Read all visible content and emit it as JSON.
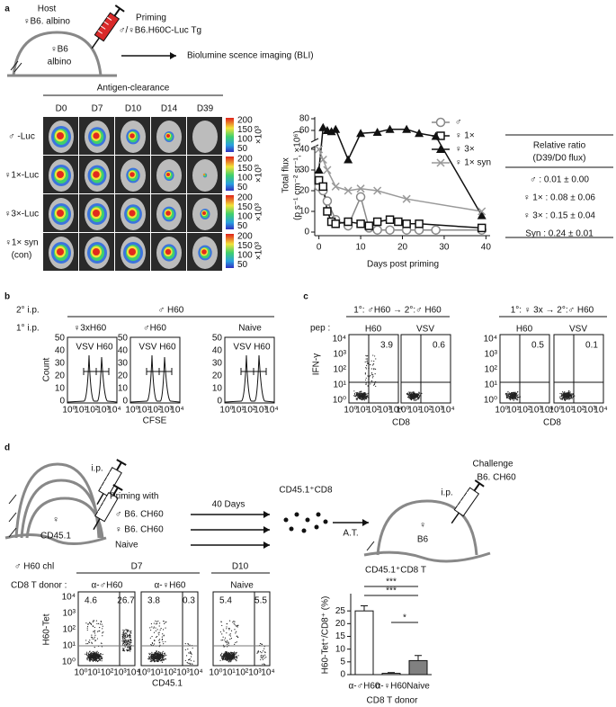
{
  "panel_labels": [
    "a",
    "b",
    "c",
    "d"
  ],
  "a": {
    "host": "Host",
    "host_strain": "♀B6. albino",
    "mouse": [
      "♀B6",
      "albino"
    ],
    "priming": "Priming",
    "priming_donor": "♂/♀B6.H60C-Luc Tg",
    "bli": "Biolumine scence imaging (BLI)",
    "clearance": "Antigen-clearance",
    "days": [
      "D0",
      "D7",
      "D10",
      "D14",
      "D39"
    ],
    "rows": [
      "♂ -Luc",
      "♀1×-Luc",
      "♀3×-Luc",
      "♀1× syn",
      "(con)"
    ],
    "scale_ticks": [
      "200",
      "150",
      "100",
      "50"
    ],
    "scale_unit": "×10³",
    "ratio_title": [
      "Relative ratio",
      "(D39/D0 flux)"
    ],
    "ratios": [
      "♂ : 0.01 ± 0.00",
      "♀ 1× : 0.08 ± 0.06",
      "♀ 3× : 0.15 ± 0.04",
      "Syn : 0.24 ± 0.01"
    ]
  },
  "b": {
    "secondary": "2° i.p.",
    "secondary_strain": "♂ H60",
    "primary": "1° i.p.",
    "groups": [
      "♀3xH60",
      "♂H60",
      "Naive"
    ],
    "gate": "VSV H60",
    "y_label": "Count",
    "x_label": "CFSE",
    "yticks": [
      "0",
      "10",
      "20",
      "30",
      "40",
      "50"
    ]
  },
  "log_ticks": [
    "10⁰",
    "10¹",
    "10²",
    "10³",
    "10⁴"
  ],
  "c": {
    "groups": [
      "1°: ♂H60 → 2°:♂ H60",
      "1°: ♀ 3x → 2°:♂ H60"
    ],
    "pep": "pep :",
    "peptides": [
      "H60",
      "VSV"
    ],
    "percents": [
      "3.9",
      "0.6",
      "0.5",
      "0.1"
    ],
    "y_label": "IFN-γ",
    "x_label": "CD8"
  },
  "d": {
    "ip": "i.p.",
    "priming": "Priming with",
    "groups": [
      "♂ B6. CH60",
      "♀ B6. CH60",
      "Naive"
    ],
    "days": "40 Days",
    "cells": "CD45.1⁺CD8",
    "transfer": "A.T.",
    "challenge": "Challenge",
    "challenge_strain": "B6. CH60",
    "host": [
      "♀",
      "B6"
    ],
    "donor": "♀",
    "donor_strain": "CD45.1",
    "chl": "♂ H60 chl",
    "timepoints": [
      "D7",
      "D10"
    ],
    "donor_label": "CD8 T donor :",
    "donors": [
      "α-♂H60",
      "α-♀H60",
      "Naive"
    ],
    "percents": [
      "4.6",
      "26.7",
      "3.8",
      "0.3",
      "5.4",
      "5.5"
    ],
    "y_label": "H60-Tet",
    "x_label": "CD45.1"
  },
  "chart_data": [
    {
      "type": "line",
      "y_label": [
        "Total flux",
        "(p s⁻¹ cm⁻² sr⁻¹, ×10⁶)"
      ],
      "x_label": "Days post priming",
      "xlim": [
        -1,
        41
      ],
      "xticks": [
        0,
        10,
        20,
        30,
        40
      ],
      "ylim": [
        0,
        80
      ],
      "yticks": [
        0,
        10,
        20,
        30,
        40,
        60,
        80
      ],
      "series": [
        {
          "name": "♂",
          "color": "#888888",
          "marker": "circle-open",
          "x": [
            0,
            1,
            2,
            4,
            7,
            10,
            12,
            14,
            17,
            21,
            24,
            28,
            39
          ],
          "values": [
            22,
            20,
            15,
            6,
            3,
            17,
            2,
            1,
            1,
            1,
            1,
            1,
            1
          ]
        },
        {
          "name": "♀ 1×",
          "color": "#111111",
          "marker": "square-open",
          "x": [
            0,
            1,
            2,
            3,
            4,
            7,
            10,
            12,
            14,
            17,
            19,
            21,
            24,
            39
          ],
          "values": [
            25,
            22,
            10,
            5,
            4,
            5,
            4,
            3,
            5,
            6,
            5,
            4,
            4,
            2
          ]
        },
        {
          "name": "♀ 3×",
          "color": "#111111",
          "marker": "triangle",
          "x": [
            0,
            1,
            2,
            3,
            4,
            7,
            10,
            14,
            17,
            21,
            24,
            28,
            39
          ],
          "values": [
            30,
            65,
            60,
            58,
            62,
            35,
            55,
            57,
            62,
            62,
            55,
            50,
            8
          ]
        },
        {
          "name": "♀ 1× syn",
          "color": "#999999",
          "marker": "x",
          "x": [
            0,
            1,
            2,
            4,
            7,
            10,
            14,
            21,
            39
          ],
          "values": [
            40,
            35,
            30,
            22,
            20,
            21,
            20,
            16,
            10
          ]
        }
      ]
    },
    {
      "type": "bar",
      "title": "CD45.1⁺CD8 T",
      "y_label": "H60-Tet⁺/CD8⁺ (%)",
      "x_label": "CD8 T donor",
      "categories": [
        "α-♂H60",
        "α-♀H60",
        "Naive"
      ],
      "values": [
        25,
        0.5,
        5.5
      ],
      "errors": [
        2,
        0.3,
        2
      ],
      "colors": [
        "#ffffff",
        "#ffffff",
        "#808080"
      ],
      "ylim": [
        0,
        30
      ],
      "yticks": [
        0,
        5,
        10,
        15,
        20,
        25
      ],
      "significance": [
        "***",
        "***",
        "*"
      ]
    }
  ]
}
